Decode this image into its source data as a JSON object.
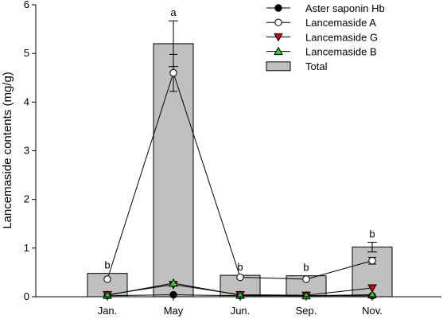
{
  "chart_data": {
    "type": "bar",
    "title": "",
    "xlabel": "",
    "ylabel": "Lancemaside contents (mg/g)",
    "ylim": [
      0,
      6
    ],
    "yticks": [
      "0",
      "1",
      "2",
      "3",
      "4",
      "5",
      "6"
    ],
    "categories": [
      "Jan.",
      "May",
      "Jun.",
      "Sep.",
      "Nov."
    ],
    "legend_position": "top-right",
    "grid": false,
    "bars": {
      "name": "Total",
      "values": [
        0.48,
        5.2,
        0.44,
        0.43,
        1.02
      ],
      "errors": [
        0.0,
        0.47,
        0.0,
        0.0,
        0.1
      ],
      "letters": [
        "b",
        "a",
        "b",
        "b",
        "b"
      ],
      "color": "#c0c0c0"
    },
    "series": [
      {
        "name": "Aster saponin Hb",
        "marker": "circle",
        "fill": "#000000",
        "values": [
          0.02,
          0.04,
          0.02,
          0.02,
          0.02
        ],
        "errors": [
          0,
          0,
          0,
          0,
          0
        ]
      },
      {
        "name": "Lancemaside A",
        "marker": "circle",
        "fill": "#ffffff",
        "values": [
          0.36,
          4.6,
          0.4,
          0.36,
          0.74
        ],
        "errors": [
          0,
          0.38,
          0,
          0,
          0.07
        ]
      },
      {
        "name": "Lancemaside G",
        "marker": "triangle-down",
        "fill": "#cc0000",
        "values": [
          0.04,
          0.25,
          0.04,
          0.03,
          0.18
        ],
        "errors": [
          0,
          0,
          0,
          0,
          0
        ]
      },
      {
        "name": "Lancemaside B",
        "marker": "triangle-up",
        "fill": "#33cc33",
        "values": [
          0.03,
          0.28,
          0.03,
          0.02,
          0.04
        ],
        "errors": [
          0,
          0,
          0,
          0,
          0
        ]
      }
    ]
  }
}
